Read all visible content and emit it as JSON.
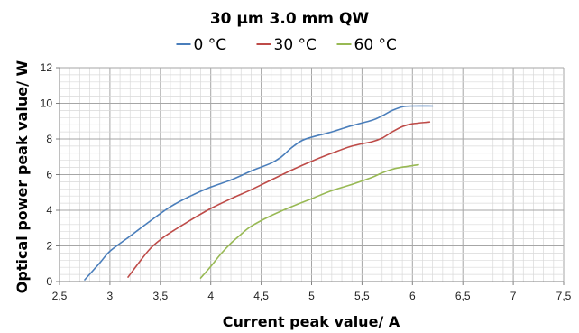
{
  "chart_data": {
    "type": "line",
    "title": "30 µm 3.0 mm QW",
    "xlabel": "Current peak value/ A",
    "ylabel": "Optical power peak value/ W",
    "xlim": [
      2.5,
      7.5
    ],
    "ylim": [
      0,
      12
    ],
    "x_ticks": [
      "2,5",
      "3",
      "3,5",
      "4",
      "4,5",
      "5",
      "5,5",
      "6",
      "6,5",
      "7",
      "7,5"
    ],
    "y_ticks": [
      "0",
      "2",
      "4",
      "6",
      "8",
      "10",
      "12"
    ],
    "grid": true,
    "legend_position": "top",
    "series": [
      {
        "name": "0 °C",
        "color": "#4a7ebb",
        "points": [
          [
            2.75,
            0.1
          ],
          [
            2.9,
            1.05
          ],
          [
            3.0,
            1.7
          ],
          [
            3.2,
            2.55
          ],
          [
            3.4,
            3.4
          ],
          [
            3.6,
            4.2
          ],
          [
            3.8,
            4.8
          ],
          [
            4.0,
            5.3
          ],
          [
            4.2,
            5.7
          ],
          [
            4.4,
            6.2
          ],
          [
            4.6,
            6.65
          ],
          [
            4.7,
            7.0
          ],
          [
            4.8,
            7.5
          ],
          [
            4.9,
            7.9
          ],
          [
            5.0,
            8.1
          ],
          [
            5.2,
            8.4
          ],
          [
            5.4,
            8.75
          ],
          [
            5.6,
            9.05
          ],
          [
            5.7,
            9.3
          ],
          [
            5.8,
            9.6
          ],
          [
            5.9,
            9.8
          ],
          [
            6.0,
            9.85
          ],
          [
            6.2,
            9.85
          ]
        ]
      },
      {
        "name": "30 °C",
        "color": "#be4b48",
        "points": [
          [
            3.18,
            0.25
          ],
          [
            3.3,
            1.15
          ],
          [
            3.4,
            1.85
          ],
          [
            3.5,
            2.35
          ],
          [
            3.6,
            2.75
          ],
          [
            3.8,
            3.45
          ],
          [
            4.0,
            4.1
          ],
          [
            4.2,
            4.65
          ],
          [
            4.4,
            5.15
          ],
          [
            4.6,
            5.7
          ],
          [
            4.8,
            6.25
          ],
          [
            5.0,
            6.75
          ],
          [
            5.2,
            7.2
          ],
          [
            5.4,
            7.6
          ],
          [
            5.6,
            7.85
          ],
          [
            5.7,
            8.05
          ],
          [
            5.8,
            8.4
          ],
          [
            5.9,
            8.7
          ],
          [
            6.0,
            8.85
          ],
          [
            6.17,
            8.95
          ]
        ]
      },
      {
        "name": "60 °C",
        "color": "#98b954",
        "points": [
          [
            3.9,
            0.2
          ],
          [
            4.0,
            0.85
          ],
          [
            4.1,
            1.55
          ],
          [
            4.2,
            2.15
          ],
          [
            4.3,
            2.65
          ],
          [
            4.4,
            3.1
          ],
          [
            4.6,
            3.7
          ],
          [
            4.8,
            4.2
          ],
          [
            5.0,
            4.65
          ],
          [
            5.2,
            5.1
          ],
          [
            5.4,
            5.45
          ],
          [
            5.6,
            5.85
          ],
          [
            5.7,
            6.1
          ],
          [
            5.8,
            6.3
          ],
          [
            5.9,
            6.42
          ],
          [
            6.06,
            6.55
          ]
        ]
      }
    ]
  }
}
